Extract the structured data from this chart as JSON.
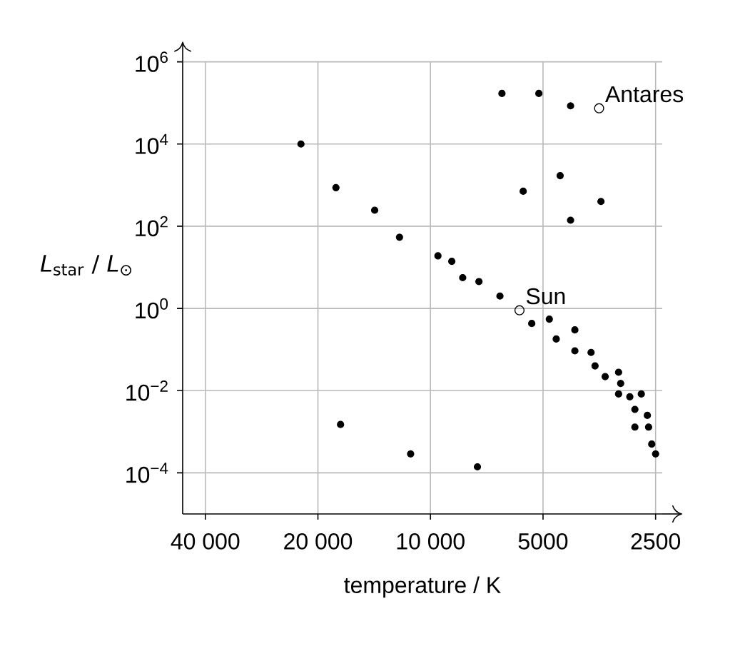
{
  "chart_data": {
    "type": "scatter",
    "xlabel": "temperature / K",
    "ylabel": "*L*$_{star}$ / *L*$_{⊙}$",
    "log": "xy",
    "xlim": [
      46000,
      2400
    ],
    "ylim": [
      1e-05,
      1000000
    ],
    "xticks": [
      {
        "value": 40000,
        "label": "40 000"
      },
      {
        "value": 20000,
        "label": "20 000"
      },
      {
        "value": 10000,
        "label": "10 000"
      },
      {
        "value": 5000,
        "label": "5000"
      },
      {
        "value": 2500,
        "label": "2500"
      }
    ],
    "yticks": [
      {
        "value": 0.0001,
        "label": "10$^{−4}$"
      },
      {
        "value": 0.01,
        "label": "10$^{−2}$"
      },
      {
        "value": 1,
        "label": "10$^{0}$"
      },
      {
        "value": 100,
        "label": "10$^{2}$"
      },
      {
        "value": 10000,
        "label": "10$^{4}$"
      },
      {
        "value": 1000000,
        "label": "10$^{6}$"
      }
    ],
    "grid": true,
    "series": [
      {
        "color": "#000000",
        "marker": "circle",
        "x": [
          22200,
          17900,
          14100,
          12100,
          9550,
          8770,
          8200,
          17400,
          11300,
          6440,
          5130,
          4220,
          4500,
          5650,
          3500,
          4220,
          7420,
          6520,
          5360,
          4810,
          4610,
          4110,
          4110,
          3720,
          3630,
          3410,
          3140,
          3100,
          3140,
          2930,
          2730,
          2840,
          2630,
          2840,
          2610,
          2560,
          2500,
          7490
        ],
        "values": [
          10000,
          870,
          245,
          54,
          19,
          14,
          5.6,
          0.0015,
          0.00029,
          170000,
          170000,
          85000,
          1700,
          710,
          400,
          140,
          4.5,
          2,
          0.43,
          0.55,
          0.18,
          0.3,
          0.093,
          0.085,
          0.04,
          0.022,
          0.028,
          0.015,
          0.0083,
          0.0071,
          0.0083,
          0.0035,
          0.0025,
          0.0013,
          0.0013,
          0.0005,
          0.00029,
          0.00014
        ]
      },
      {
        "color": "#000000",
        "marker": "open circle",
        "x": [
          3540,
          5780
        ],
        "values": [
          74000,
          0.9
        ]
      }
    ],
    "annotations": [
      {
        "text": "Antares",
        "x": 3540,
        "y": 74000
      },
      {
        "text": "Sun",
        "x": 5780,
        "y": 0.9
      }
    ]
  }
}
